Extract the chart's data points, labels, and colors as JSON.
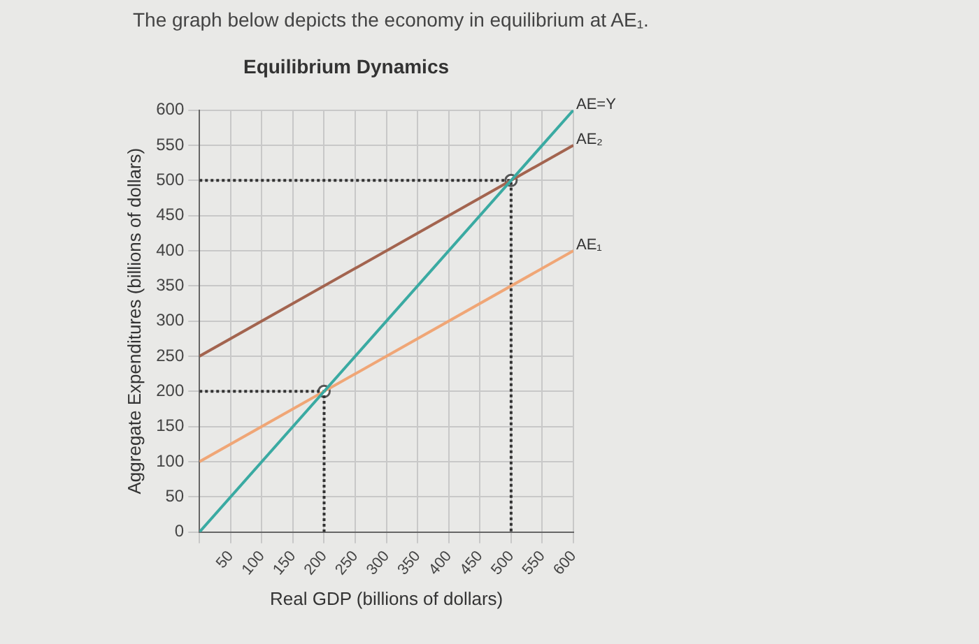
{
  "chart_data": {
    "type": "line",
    "title": "Equilibrium Dynamics",
    "subtitle": "The graph below depicts the economy in equilibrium at AE₁.",
    "xlabel": "Real GDP (billions of dollars)",
    "ylabel": "Aggregate Expenditures (billions of dollars)",
    "x": [
      0,
      600
    ],
    "series": [
      {
        "name": "AE=Y",
        "color": "#3aaaa2",
        "values": [
          0,
          600
        ],
        "marker": "none"
      },
      {
        "name": "AE₂",
        "color": "#a3644f",
        "values": [
          250,
          550
        ],
        "marker": "none"
      },
      {
        "name": "AE₁",
        "color": "#f0a676",
        "values": [
          100,
          400
        ],
        "marker": "none"
      },
      {
        "type": "line",
        "x": [
          0,
          200,
          200
        ],
        "color": "#333333",
        "values": [
          200,
          200,
          0
        ],
        "line_style": "dotted",
        "marker": "none"
      },
      {
        "type": "line",
        "x": [
          0,
          500,
          500
        ],
        "color": "#333333",
        "values": [
          500,
          500,
          0
        ],
        "line_style": "dotted",
        "marker": "none"
      },
      {
        "type": "scatter",
        "x": [
          200,
          500
        ],
        "color": "#555555",
        "values": [
          200,
          500
        ],
        "marker": "circle"
      }
    ],
    "xlim": [
      0,
      600
    ],
    "ylim": [
      0,
      600
    ],
    "xticks": [
      {
        "value": 0,
        "label": null
      },
      50,
      100,
      150,
      200,
      250,
      300,
      350,
      400,
      450,
      500,
      550,
      600
    ],
    "yticks": [
      0,
      50,
      100,
      150,
      200,
      250,
      300,
      350,
      400,
      450,
      500,
      550,
      600
    ],
    "grid": true,
    "legend": false,
    "line_style": "solid"
  }
}
